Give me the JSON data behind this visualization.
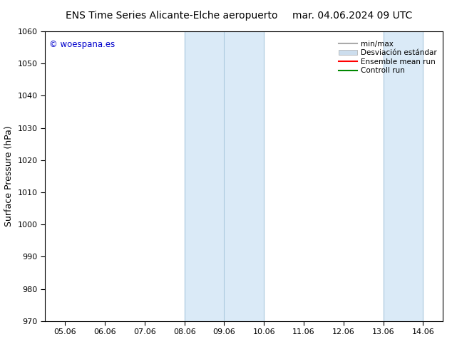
{
  "title_left": "ENS Time Series Alicante-Elche aeropuerto",
  "title_right": "mar. 04.06.2024 09 UTC",
  "ylabel": "Surface Pressure (hPa)",
  "ylim": [
    970,
    1060
  ],
  "yticks": [
    970,
    980,
    990,
    1000,
    1010,
    1020,
    1030,
    1040,
    1050,
    1060
  ],
  "xtick_labels": [
    "05.06",
    "06.06",
    "07.06",
    "08.06",
    "09.06",
    "10.06",
    "11.06",
    "12.06",
    "13.06",
    "14.06"
  ],
  "xtick_positions": [
    0,
    1,
    2,
    3,
    4,
    5,
    6,
    7,
    8,
    9
  ],
  "xlim": [
    -0.5,
    9.5
  ],
  "shaded_regions": [
    {
      "xmin": 3.0,
      "xmax": 4.0,
      "color": "#daeaf7"
    },
    {
      "xmin": 4.0,
      "xmax": 5.0,
      "color": "#daeaf7"
    },
    {
      "xmin": 8.0,
      "xmax": 9.0,
      "color": "#daeaf7"
    }
  ],
  "vertical_lines_color": "#aac8dd",
  "watermark": "© woespana.es",
  "watermark_color": "#0000cc",
  "bg_color": "#ffffff",
  "plot_bg_color": "#ffffff",
  "legend_label_minmax": "min/max",
  "legend_label_std": "Desviación estándar",
  "legend_label_ensemble": "Ensemble mean run",
  "legend_label_control": "Controll run",
  "legend_color_minmax": "#aaaaaa",
  "legend_color_std": "#ccdded",
  "legend_color_ensemble": "#ff0000",
  "legend_color_control": "#008800",
  "title_fontsize": 10,
  "tick_fontsize": 8,
  "ylabel_fontsize": 9,
  "legend_fontsize": 7.5
}
